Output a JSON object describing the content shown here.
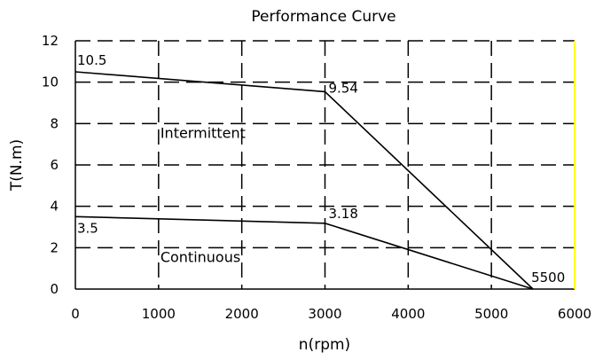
{
  "chart_data": {
    "type": "line",
    "title": "Performance Curve",
    "xlabel": "n(rpm)",
    "ylabel": "T(N.m)",
    "xlim": [
      0,
      6000
    ],
    "ylim": [
      0,
      12
    ],
    "x_ticks": [
      "0",
      "1000",
      "2000",
      "3000",
      "4000",
      "5000",
      "6000"
    ],
    "y_ticks": [
      "0",
      "2",
      "4",
      "6",
      "8",
      "10",
      "12"
    ],
    "grid": "dashed",
    "series": [
      {
        "points": [
          [
            0,
            10.5
          ],
          [
            3000,
            9.54
          ],
          [
            5500,
            0
          ]
        ]
      },
      {
        "points": [
          [
            0,
            3.5
          ],
          [
            3000,
            3.18
          ],
          [
            5500,
            0
          ]
        ]
      }
    ],
    "annotations": [
      {
        "text": "10.5",
        "x": 0,
        "y": 10.5
      },
      {
        "text": "9.54",
        "x": 3000,
        "y": 9.54
      },
      {
        "text": "3.5",
        "x": 0,
        "y": 3.5
      },
      {
        "text": "3.18",
        "x": 3000,
        "y": 3.18
      },
      {
        "text": "5500",
        "x": 5500,
        "y": 0
      }
    ],
    "regions": [
      {
        "text": "Intermittent",
        "x": 1000,
        "y": 7.3
      },
      {
        "text": "Continuous",
        "x": 1000,
        "y": 1.3
      }
    ],
    "colors": {
      "line": "#000000",
      "grid": "#000000",
      "right_border": "#ffff00"
    }
  }
}
